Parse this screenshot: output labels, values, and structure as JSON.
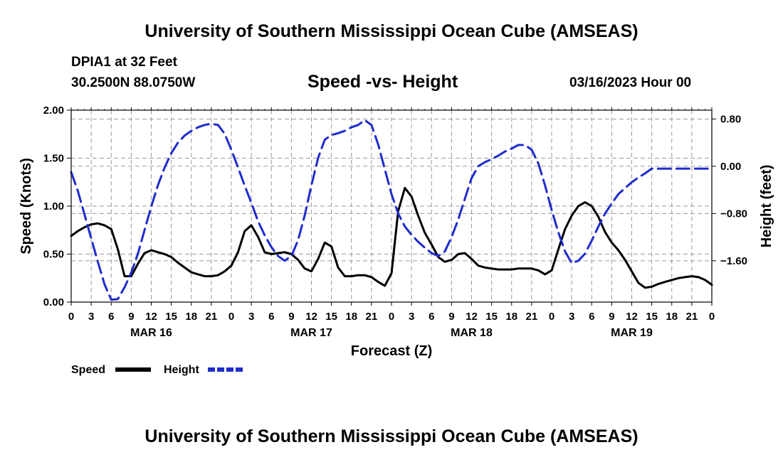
{
  "page": {
    "title": "University of Southern Mississippi Ocean Cube (AMSEAS)",
    "footer_title": "University of Southern Mississippi Ocean Cube (AMSEAS)",
    "station": "DPIA1 at 32 Feet",
    "coords": "30.2500N  88.0750W",
    "date": "03/16/2023 Hour 00"
  },
  "colors": {
    "speed": "#000000",
    "height": "#1f2ccc",
    "grid": "#9a9a9a"
  },
  "chart_data": {
    "type": "line",
    "title": "Speed -vs- Height",
    "xlabel": "Forecast (Z)",
    "ylabel": "Speed (Knots)",
    "y2label": "Height (feet)",
    "xlim": [
      0,
      96
    ],
    "ylim": [
      0,
      2.0
    ],
    "y2lim": [
      -2.3,
      0.95
    ],
    "x_tick_values": [
      0,
      3,
      6,
      9,
      12,
      15,
      18,
      21,
      24,
      27,
      30,
      33,
      36,
      39,
      42,
      45,
      48,
      51,
      54,
      57,
      60,
      63,
      66,
      69,
      72,
      75,
      78,
      81,
      84,
      87,
      90,
      93,
      96
    ],
    "x_tick_labels": [
      "0",
      "3",
      "6",
      "9",
      "12",
      "15",
      "18",
      "21",
      "0",
      "3",
      "6",
      "9",
      "12",
      "15",
      "18",
      "21",
      "0",
      "3",
      "6",
      "9",
      "12",
      "15",
      "18",
      "21",
      "0",
      "3",
      "6",
      "9",
      "12",
      "15",
      "18",
      "21",
      "0"
    ],
    "day_labels": [
      {
        "x": 12,
        "label": "MAR 16"
      },
      {
        "x": 36,
        "label": "MAR 17"
      },
      {
        "x": 60,
        "label": "MAR 18"
      },
      {
        "x": 84,
        "label": "MAR 19"
      }
    ],
    "y_ticks": [
      {
        "value": 0,
        "label": "0.00"
      },
      {
        "value": 0.5,
        "label": "0.50"
      },
      {
        "value": 1.0,
        "label": "1.00"
      },
      {
        "value": 1.5,
        "label": "1.50"
      },
      {
        "value": 2.0,
        "label": "2.00"
      }
    ],
    "y2_ticks": [
      {
        "value": 0.8,
        "label": "0.80"
      },
      {
        "value": 0.0,
        "label": "0.00"
      },
      {
        "value": -0.8,
        "label": "−0.80"
      },
      {
        "value": -1.6,
        "label": "−1.60"
      }
    ],
    "series": [
      {
        "name": "Speed",
        "axis": "left",
        "style": "solid",
        "x": [
          0,
          1,
          2,
          3,
          4,
          5,
          6,
          7,
          8,
          9,
          10,
          11,
          12,
          13,
          14,
          15,
          16,
          17,
          18,
          19,
          20,
          21,
          22,
          23,
          24,
          25,
          26,
          27,
          28,
          29,
          30,
          31,
          32,
          33,
          34,
          35,
          36,
          37,
          38,
          39,
          40,
          41,
          42,
          43,
          44,
          45,
          46,
          47,
          48,
          49,
          50,
          51,
          52,
          53,
          54,
          55,
          56,
          57,
          58,
          59,
          60,
          61,
          62,
          63,
          64,
          65,
          66,
          67,
          68,
          69,
          70,
          71,
          72,
          73,
          74,
          75,
          76,
          77,
          78,
          79,
          80,
          81,
          82,
          83,
          84,
          85,
          86,
          87,
          88,
          89,
          90,
          91,
          92,
          93,
          94,
          95,
          96
        ],
        "values": [
          0.69,
          0.74,
          0.78,
          0.81,
          0.82,
          0.8,
          0.76,
          0.55,
          0.27,
          0.27,
          0.4,
          0.51,
          0.54,
          0.52,
          0.5,
          0.47,
          0.41,
          0.36,
          0.31,
          0.29,
          0.27,
          0.27,
          0.28,
          0.32,
          0.38,
          0.52,
          0.74,
          0.8,
          0.68,
          0.52,
          0.5,
          0.51,
          0.52,
          0.5,
          0.44,
          0.35,
          0.32,
          0.45,
          0.62,
          0.58,
          0.36,
          0.27,
          0.27,
          0.28,
          0.28,
          0.26,
          0.21,
          0.17,
          0.3,
          0.95,
          1.19,
          1.1,
          0.9,
          0.72,
          0.6,
          0.47,
          0.42,
          0.44,
          0.5,
          0.51,
          0.45,
          0.38,
          0.36,
          0.35,
          0.34,
          0.34,
          0.34,
          0.35,
          0.35,
          0.35,
          0.33,
          0.29,
          0.33,
          0.55,
          0.76,
          0.9,
          1.0,
          1.04,
          1.0,
          0.89,
          0.73,
          0.62,
          0.54,
          0.44,
          0.32,
          0.2,
          0.15,
          0.16,
          0.19,
          0.21,
          0.23,
          0.25,
          0.26,
          0.27,
          0.26,
          0.23,
          0.18
        ]
      },
      {
        "name": "Height",
        "axis": "right",
        "style": "dashed",
        "x": [
          0,
          1,
          2,
          3,
          4,
          5,
          6,
          7,
          8,
          9,
          10,
          11,
          12,
          13,
          14,
          15,
          16,
          17,
          18,
          19,
          20,
          21,
          22,
          23,
          24,
          25,
          26,
          27,
          28,
          29,
          30,
          31,
          32,
          33,
          34,
          35,
          36,
          37,
          38,
          39,
          40,
          41,
          42,
          43,
          44,
          45,
          46,
          47,
          48,
          49,
          50,
          51,
          52,
          53,
          54,
          55,
          56,
          57,
          58,
          59,
          60,
          61,
          62,
          63,
          64,
          65,
          66,
          67,
          68,
          69,
          70,
          71,
          72,
          73,
          74,
          75,
          76,
          77,
          78,
          79,
          80,
          81,
          82,
          83,
          84,
          85,
          86,
          87,
          88,
          89,
          90,
          91,
          92,
          93,
          94,
          95,
          96
        ],
        "values": [
          -0.1,
          -0.42,
          -0.82,
          -1.22,
          -1.62,
          -2.0,
          -2.26,
          -2.25,
          -2.05,
          -1.8,
          -1.48,
          -1.08,
          -0.68,
          -0.32,
          -0.02,
          0.22,
          0.4,
          0.52,
          0.6,
          0.66,
          0.7,
          0.72,
          0.7,
          0.55,
          0.28,
          -0.02,
          -0.33,
          -0.62,
          -0.93,
          -1.17,
          -1.37,
          -1.52,
          -1.6,
          -1.52,
          -1.25,
          -0.83,
          -0.32,
          0.14,
          0.45,
          0.53,
          0.56,
          0.6,
          0.66,
          0.7,
          0.78,
          0.7,
          0.37,
          -0.05,
          -0.47,
          -0.8,
          -1.02,
          -1.16,
          -1.28,
          -1.38,
          -1.47,
          -1.52,
          -1.44,
          -1.2,
          -0.9,
          -0.55,
          -0.2,
          0.0,
          0.07,
          0.12,
          0.18,
          0.25,
          0.3,
          0.36,
          0.36,
          0.28,
          0.05,
          -0.32,
          -0.74,
          -1.12,
          -1.44,
          -1.64,
          -1.6,
          -1.48,
          -1.26,
          -1.02,
          -0.8,
          -0.63,
          -0.47,
          -0.37,
          -0.27,
          -0.19,
          -0.12,
          -0.04,
          -0.04,
          -0.04,
          -0.04,
          -0.04,
          -0.04,
          -0.04,
          -0.04,
          -0.04,
          -0.04
        ]
      }
    ],
    "legend": [
      {
        "label": "Speed",
        "style": "solid"
      },
      {
        "label": "Height",
        "style": "dashed"
      }
    ]
  }
}
